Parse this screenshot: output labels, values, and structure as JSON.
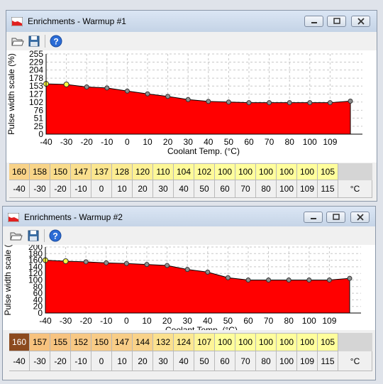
{
  "windows": [
    {
      "title": "Enrichments - Warmup #1",
      "table": {
        "values": [
          "160",
          "158",
          "150",
          "147",
          "137",
          "128",
          "120",
          "110",
          "104",
          "102",
          "100",
          "100",
          "100",
          "100",
          "100",
          "105"
        ],
        "value_colors": [
          "#f8d288",
          "#f8d488",
          "#f9dc8c",
          "#fadf8e",
          "#fbe68f",
          "#fcec92",
          "#fdf194",
          "#fdf797",
          "#fefa99",
          "#fefa99",
          "#fffe9c",
          "#fffe9c",
          "#fffe9c",
          "#fffe9c",
          "#fffe9c",
          "#fffe9c"
        ],
        "temps": [
          "-40",
          "-30",
          "-20",
          "-10",
          "0",
          "10",
          "20",
          "30",
          "40",
          "50",
          "60",
          "70",
          "80",
          "100",
          "109",
          "115"
        ],
        "unit": "°C"
      },
      "chart_data": {
        "type": "area",
        "xlabel": "Coolant Temp. (°C)",
        "ylabel": "Pulse width scale (%)",
        "x_ticks": [
          "-40",
          "-30",
          "-20",
          "-10",
          "0",
          "10",
          "20",
          "30",
          "40",
          "50",
          "60",
          "70",
          "80",
          "100",
          "109"
        ],
        "y_ticks": [
          "0",
          "25",
          "51",
          "76",
          "102",
          "127",
          "153",
          "178",
          "204",
          "229",
          "255"
        ],
        "ylim": [
          0,
          255
        ],
        "points": [
          {
            "x": -40,
            "y": 160
          },
          {
            "x": -30,
            "y": 158
          },
          {
            "x": -20,
            "y": 150
          },
          {
            "x": -10,
            "y": 147
          },
          {
            "x": 0,
            "y": 137
          },
          {
            "x": 10,
            "y": 128
          },
          {
            "x": 20,
            "y": 120
          },
          {
            "x": 30,
            "y": 110
          },
          {
            "x": 40,
            "y": 104
          },
          {
            "x": 50,
            "y": 102
          },
          {
            "x": 60,
            "y": 100
          },
          {
            "x": 70,
            "y": 100
          },
          {
            "x": 80,
            "y": 100
          },
          {
            "x": 100,
            "y": 100
          },
          {
            "x": 109,
            "y": 100
          },
          {
            "x": 115,
            "y": 105
          }
        ],
        "fill_color": "#ff0000",
        "grid": true
      }
    },
    {
      "title": "Enrichments - Warmup #2",
      "table": {
        "values": [
          "160",
          "157",
          "155",
          "152",
          "150",
          "147",
          "144",
          "132",
          "124",
          "107",
          "100",
          "100",
          "100",
          "100",
          "100",
          "105"
        ],
        "value_colors": [
          "#8c4a1e",
          "#f7c27e",
          "#f7c380",
          "#f8c884",
          "#f8cb86",
          "#f8cd87",
          "#f9d289",
          "#fbe08e",
          "#fce892",
          "#fef497",
          "#fffe9c",
          "#fffe9c",
          "#fffe9c",
          "#fffe9c",
          "#fffe9c",
          "#fffe9c"
        ],
        "temps": [
          "-40",
          "-30",
          "-20",
          "-10",
          "0",
          "10",
          "20",
          "30",
          "40",
          "50",
          "60",
          "70",
          "80",
          "100",
          "109",
          "115"
        ],
        "unit": "°C"
      },
      "chart_data": {
        "type": "area",
        "xlabel": "Coolant Temp. (°C)",
        "ylabel": "Pulse width scale (",
        "x_ticks": [
          "-40",
          "-30",
          "-20",
          "-10",
          "0",
          "10",
          "20",
          "30",
          "40",
          "50",
          "60",
          "70",
          "80",
          "100",
          "109"
        ],
        "y_ticks": [
          "0",
          "20",
          "40",
          "60",
          "80",
          "100",
          "120",
          "140",
          "160",
          "180",
          "200"
        ],
        "ylim": [
          0,
          200
        ],
        "points": [
          {
            "x": -40,
            "y": 160
          },
          {
            "x": -30,
            "y": 157
          },
          {
            "x": -20,
            "y": 155
          },
          {
            "x": -10,
            "y": 152
          },
          {
            "x": 0,
            "y": 150
          },
          {
            "x": 10,
            "y": 147
          },
          {
            "x": 20,
            "y": 144
          },
          {
            "x": 30,
            "y": 132
          },
          {
            "x": 40,
            "y": 124
          },
          {
            "x": 50,
            "y": 107
          },
          {
            "x": 60,
            "y": 100
          },
          {
            "x": 70,
            "y": 100
          },
          {
            "x": 80,
            "y": 100
          },
          {
            "x": 100,
            "y": 100
          },
          {
            "x": 109,
            "y": 100
          },
          {
            "x": 115,
            "y": 105
          }
        ],
        "fill_color": "#ff0000",
        "grid": true
      }
    }
  ]
}
